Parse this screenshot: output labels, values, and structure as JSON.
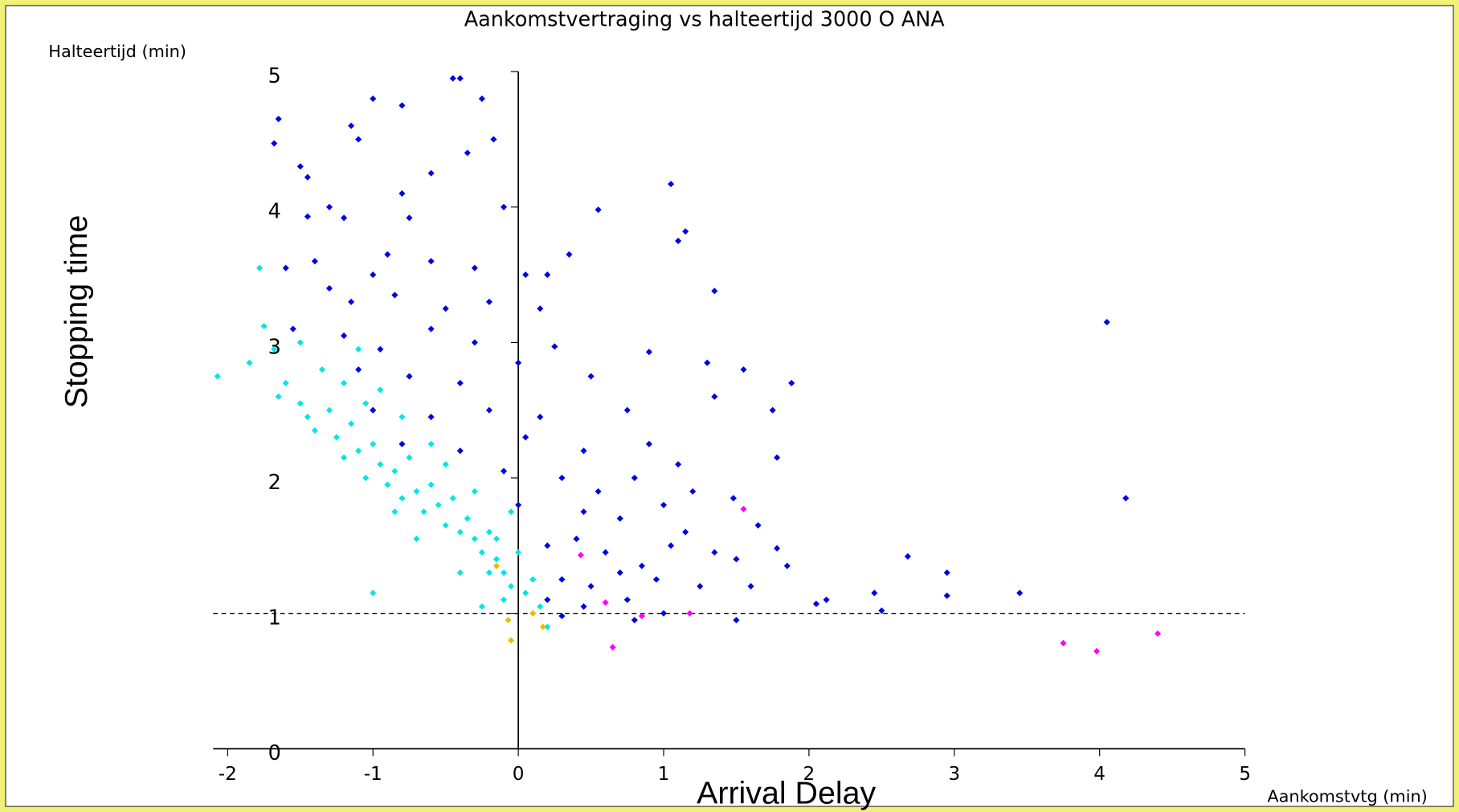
{
  "chart_data": {
    "type": "scatter",
    "title": "Aankomstvertraging vs halteertijd 3000 O ANA",
    "y_label": "Halteertijd (min)",
    "x_label": "Aankomstvtg (min)",
    "annotations": [
      "Stopping time",
      "Arrival Delay"
    ],
    "xlim": [
      -2.1,
      5
    ],
    "ylim": [
      0,
      5
    ],
    "xticks": [
      -2,
      -1,
      0,
      1,
      2,
      3,
      4,
      5
    ],
    "yticks": [
      0,
      1,
      2,
      3,
      4,
      5
    ],
    "reference_line_y": 1,
    "series": [
      {
        "color": "#0000e6",
        "x": [
          -1.65,
          -1.68,
          -1.5,
          -1.45,
          -1.15,
          -1.0,
          -1.1,
          -0.8,
          -0.45,
          -0.4,
          -0.25,
          -0.17,
          -0.35,
          -0.6,
          -0.8,
          -1.3,
          -1.45,
          -1.2,
          -0.75,
          -0.1,
          0.55,
          1.05,
          1.1,
          1.15,
          -1.6,
          -1.4,
          -1.0,
          -0.9,
          -0.6,
          -0.3,
          0.05,
          0.2,
          0.35,
          -1.3,
          -1.15,
          -0.85,
          -0.5,
          -0.2,
          0.15,
          1.35,
          -1.55,
          -1.2,
          -0.95,
          -0.6,
          -0.3,
          0.25,
          0.9,
          -1.1,
          -0.75,
          -0.4,
          0.0,
          0.5,
          1.3,
          1.55,
          1.88,
          4.05,
          -1.0,
          -0.6,
          -0.2,
          0.15,
          0.75,
          1.35,
          1.75,
          -0.8,
          -0.4,
          0.05,
          0.45,
          0.9,
          1.1,
          1.78,
          -0.1,
          0.3,
          0.55,
          0.8,
          1.2,
          1.48,
          0.0,
          0.45,
          0.7,
          1.0,
          1.15,
          1.65,
          4.18,
          0.2,
          0.4,
          0.6,
          0.85,
          1.05,
          1.35,
          1.5,
          1.78,
          1.85,
          0.3,
          0.5,
          0.7,
          0.95,
          1.25,
          1.6,
          2.68,
          2.95,
          3.45,
          0.2,
          0.45,
          0.75,
          1.0,
          1.5,
          2.05,
          2.12,
          2.45,
          2.5,
          2.95,
          0.3,
          0.8
        ],
        "values": [
          4.65,
          4.47,
          4.3,
          4.22,
          4.6,
          4.8,
          4.5,
          4.75,
          4.95,
          4.95,
          4.8,
          4.5,
          4.4,
          4.25,
          4.1,
          4.0,
          3.93,
          3.92,
          3.92,
          4.0,
          3.98,
          4.17,
          3.75,
          3.82,
          3.55,
          3.6,
          3.5,
          3.65,
          3.6,
          3.55,
          3.5,
          3.5,
          3.65,
          3.4,
          3.3,
          3.35,
          3.25,
          3.3,
          3.25,
          3.38,
          3.1,
          3.05,
          2.95,
          3.1,
          3.0,
          2.97,
          2.93,
          2.8,
          2.75,
          2.7,
          2.85,
          2.75,
          2.85,
          2.8,
          2.7,
          3.15,
          2.5,
          2.45,
          2.5,
          2.45,
          2.5,
          2.6,
          2.5,
          2.25,
          2.2,
          2.3,
          2.2,
          2.25,
          2.1,
          2.15,
          2.05,
          2.0,
          1.9,
          2.0,
          1.9,
          1.85,
          1.8,
          1.75,
          1.7,
          1.8,
          1.6,
          1.65,
          1.85,
          1.5,
          1.55,
          1.45,
          1.35,
          1.5,
          1.45,
          1.4,
          1.48,
          1.35,
          1.25,
          1.2,
          1.3,
          1.25,
          1.2,
          1.2,
          1.42,
          1.3,
          1.15,
          1.1,
          1.05,
          1.1,
          1.0,
          0.95,
          1.07,
          1.1,
          1.15,
          1.02,
          1.13,
          0.98,
          0.95
        ]
      },
      {
        "color": "#00e6e6",
        "x": [
          -2.07,
          -1.85,
          -1.78,
          -1.75,
          -1.68,
          -1.65,
          -1.6,
          -1.5,
          -1.45,
          -1.4,
          -1.3,
          -1.25,
          -1.2,
          -1.15,
          -1.1,
          -1.05,
          -1.0,
          -0.95,
          -0.9,
          -0.85,
          -0.8,
          -0.75,
          -0.7,
          -0.65,
          -0.6,
          -0.55,
          -0.5,
          -0.45,
          -0.4,
          -0.35,
          -0.3,
          -0.25,
          -0.2,
          -0.15,
          -0.1,
          -0.05,
          0.0,
          0.05,
          0.1,
          0.15,
          0.2,
          -0.25,
          -0.1,
          -0.2,
          -1.0,
          -1.05,
          -0.95,
          -1.2,
          -1.35,
          -1.5,
          -1.1,
          -0.8,
          -0.5,
          -0.3,
          -0.05,
          -0.15,
          -0.6,
          -0.7,
          -0.4,
          -0.85
        ],
        "values": [
          2.75,
          2.85,
          3.55,
          3.12,
          2.95,
          2.6,
          2.7,
          2.55,
          2.45,
          2.35,
          2.5,
          2.3,
          2.15,
          2.4,
          2.2,
          2.0,
          2.25,
          2.1,
          1.95,
          2.05,
          1.85,
          2.15,
          1.9,
          1.75,
          1.95,
          1.8,
          1.65,
          1.85,
          1.6,
          1.7,
          1.55,
          1.45,
          1.6,
          1.4,
          1.3,
          1.2,
          1.45,
          1.15,
          1.25,
          1.05,
          0.9,
          1.05,
          1.1,
          1.3,
          1.15,
          2.55,
          2.65,
          2.7,
          2.8,
          3.0,
          2.95,
          2.45,
          2.1,
          1.9,
          1.75,
          1.55,
          2.25,
          1.55,
          1.3,
          1.75
        ]
      },
      {
        "color": "#ff00ff",
        "x": [
          0.65,
          0.6,
          0.85,
          1.18,
          1.55,
          0.43,
          3.75,
          3.98,
          4.4
        ],
        "values": [
          0.75,
          1.08,
          0.98,
          1.0,
          1.77,
          1.43,
          0.78,
          0.72,
          0.85
        ]
      },
      {
        "color": "#e6c000",
        "x": [
          -0.05,
          -0.07,
          0.17,
          -0.15,
          0.1
        ],
        "values": [
          0.8,
          0.95,
          0.9,
          1.35,
          1.0
        ]
      }
    ]
  }
}
